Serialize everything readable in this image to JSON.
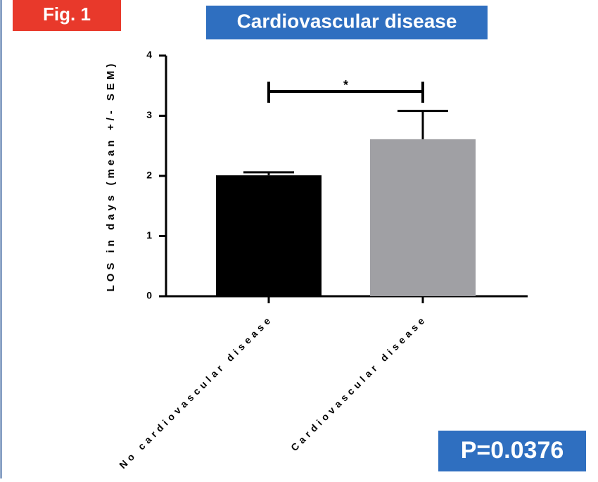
{
  "figure_label": "Fig. 1",
  "chart_data": {
    "type": "bar",
    "title": "Cardiovascular disease",
    "y_label": "LOS in days (mean +/- SEM)",
    "categories": [
      "No cardiovascular disease",
      "Cardiovascular disease"
    ],
    "values": [
      2.01,
      2.61
    ],
    "errors": [
      0.05,
      0.47
    ],
    "colors": [
      "#000000",
      "#a0a0a4"
    ],
    "ylim": [
      0,
      4
    ],
    "yticks": [
      0,
      1,
      2,
      3,
      4
    ],
    "significance": "*",
    "p_value": "P=0.0376"
  }
}
